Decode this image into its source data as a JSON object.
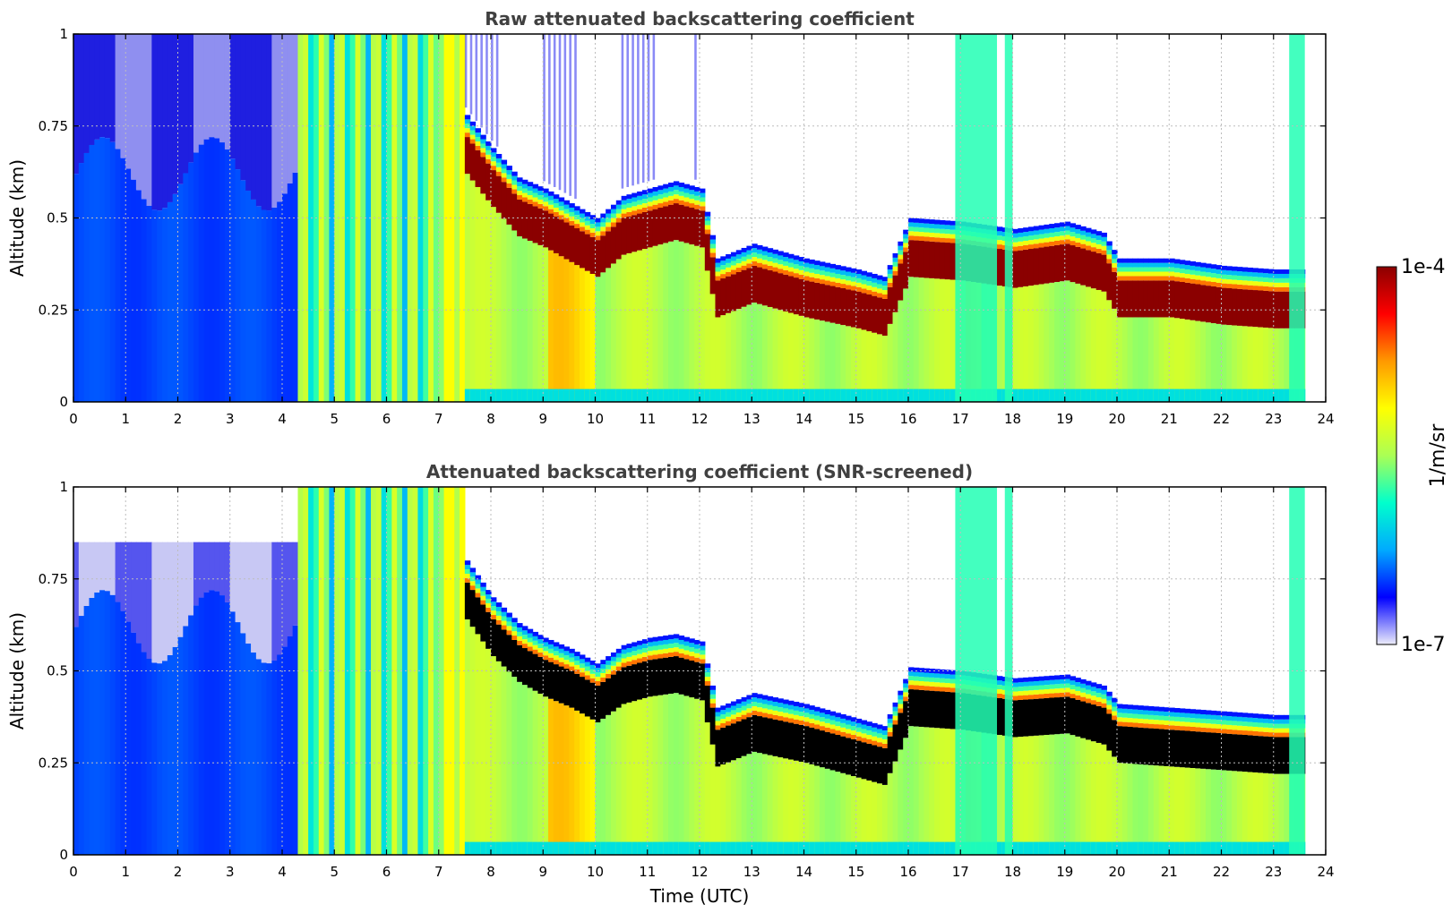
{
  "colormap": {
    "stops": [
      "#ececfa",
      "#0000ff",
      "#00aaff",
      "#00ffcc",
      "#aaff55",
      "#ffff00",
      "#ff9900",
      "#ff0000",
      "#8b0000"
    ],
    "min_label": "1e-7",
    "max_label": "1e-4",
    "unit_label": "1/m/sr"
  },
  "xlabel": "Time (UTC)",
  "chart_data": [
    {
      "type": "heatmap",
      "title": "Raw attenuated backscattering coefficient",
      "xlabel": "",
      "ylabel": "Altitude (km)",
      "xlim": [
        0,
        24
      ],
      "ylim": [
        0,
        1
      ],
      "xticks": [
        "0",
        "1",
        "2",
        "3",
        "4",
        "5",
        "6",
        "7",
        "8",
        "9",
        "10",
        "11",
        "12",
        "13",
        "14",
        "15",
        "16",
        "17",
        "18",
        "19",
        "20",
        "21",
        "22",
        "23",
        "24"
      ],
      "yticks": [
        "0",
        "0.25",
        "0.5",
        "0.75",
        "1"
      ],
      "grid": true,
      "colorbar": {
        "min": "1e-7",
        "max": "1e-4",
        "label": "1/m/sr"
      },
      "data_end_time": 23.6,
      "boundary_layer_top_km": [
        [
          7.5,
          0.72
        ],
        [
          8.0,
          0.63
        ],
        [
          8.5,
          0.55
        ],
        [
          9.0,
          0.52
        ],
        [
          9.5,
          0.48
        ],
        [
          10.0,
          0.44
        ],
        [
          10.5,
          0.5
        ],
        [
          11.0,
          0.52
        ],
        [
          11.5,
          0.54
        ],
        [
          12.0,
          0.52
        ],
        [
          12.3,
          0.33
        ],
        [
          13.0,
          0.37
        ],
        [
          14.0,
          0.33
        ],
        [
          15.0,
          0.3
        ],
        [
          15.5,
          0.28
        ],
        [
          16.0,
          0.44
        ],
        [
          17.0,
          0.43
        ],
        [
          18.0,
          0.41
        ],
        [
          19.0,
          0.43
        ],
        [
          19.7,
          0.4
        ],
        [
          20.0,
          0.33
        ],
        [
          21.0,
          0.33
        ],
        [
          22.0,
          0.31
        ],
        [
          23.0,
          0.3
        ]
      ]
    },
    {
      "type": "heatmap",
      "title": "Attenuated backscattering coefficient (SNR-screened)",
      "xlabel": "Time (UTC)",
      "ylabel": "Altitude (km)",
      "xlim": [
        0,
        24
      ],
      "ylim": [
        0,
        1
      ],
      "xticks": [
        "0",
        "1",
        "2",
        "3",
        "4",
        "5",
        "6",
        "7",
        "8",
        "9",
        "10",
        "11",
        "12",
        "13",
        "14",
        "15",
        "16",
        "17",
        "18",
        "19",
        "20",
        "21",
        "22",
        "23",
        "24"
      ],
      "yticks": [
        "0",
        "0.25",
        "0.5",
        "0.75",
        "1"
      ],
      "grid": true,
      "colorbar": {
        "min": "1e-7",
        "max": "1e-4",
        "label": "1/m/sr"
      },
      "data_end_time": 23.6,
      "boundary_layer_top_km": [
        [
          7.5,
          0.74
        ],
        [
          8.0,
          0.64
        ],
        [
          8.5,
          0.57
        ],
        [
          9.0,
          0.53
        ],
        [
          9.5,
          0.5
        ],
        [
          10.0,
          0.46
        ],
        [
          10.5,
          0.51
        ],
        [
          11.0,
          0.53
        ],
        [
          11.5,
          0.54
        ],
        [
          12.0,
          0.52
        ],
        [
          12.3,
          0.34
        ],
        [
          13.0,
          0.38
        ],
        [
          14.0,
          0.35
        ],
        [
          15.0,
          0.31
        ],
        [
          15.5,
          0.29
        ],
        [
          16.0,
          0.45
        ],
        [
          17.0,
          0.44
        ],
        [
          18.0,
          0.42
        ],
        [
          19.0,
          0.43
        ],
        [
          19.7,
          0.4
        ],
        [
          20.0,
          0.35
        ],
        [
          21.0,
          0.34
        ],
        [
          22.0,
          0.33
        ],
        [
          23.0,
          0.32
        ]
      ]
    }
  ]
}
